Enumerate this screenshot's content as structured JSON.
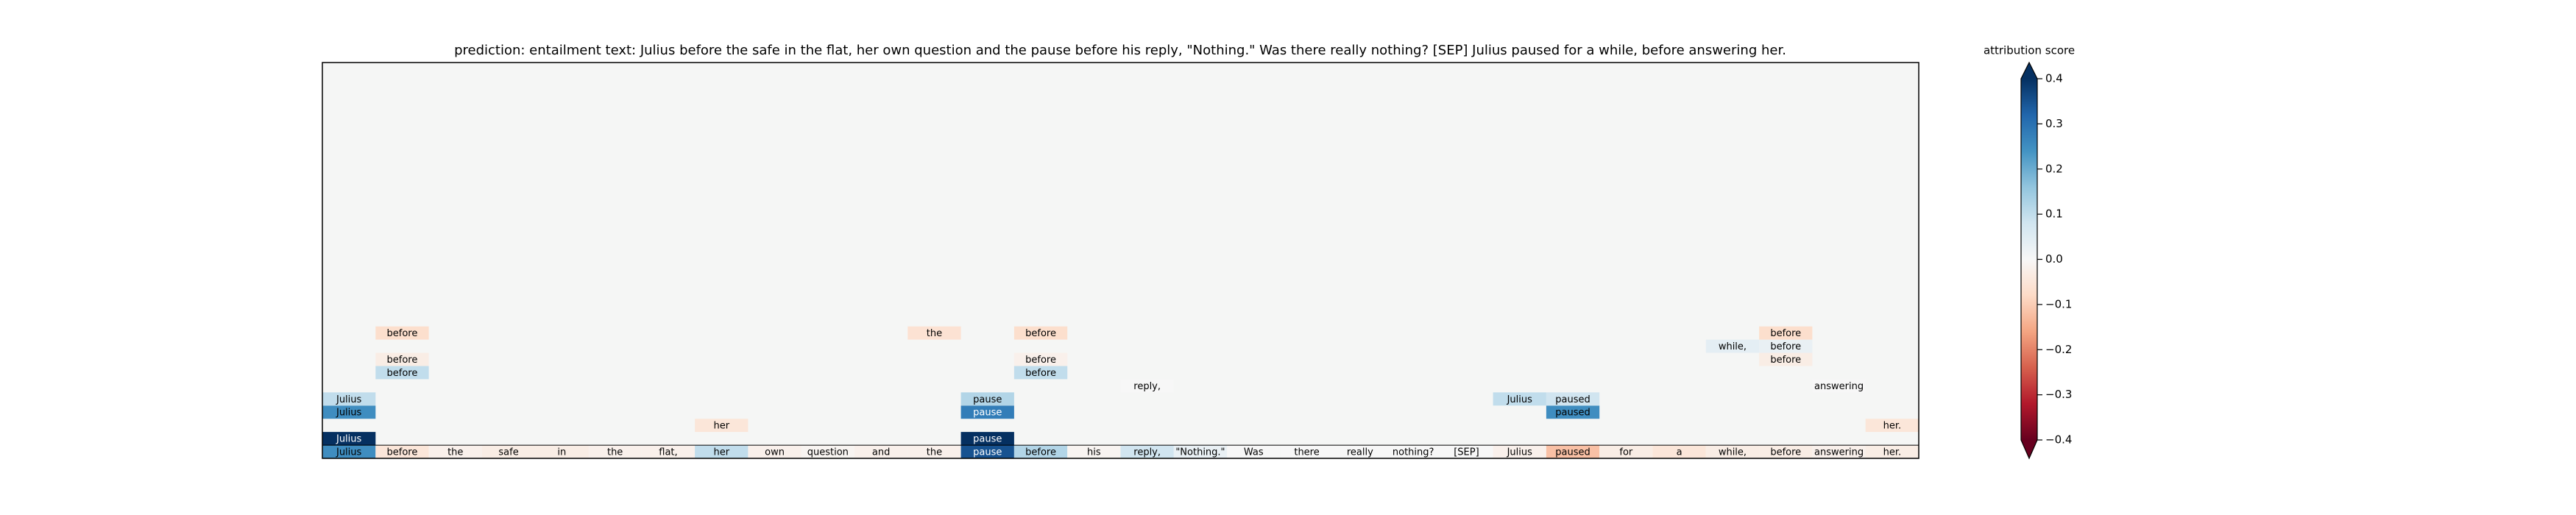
{
  "chart_data": {
    "type": "token-attribution",
    "title": "prediction:  entailment     text:  Julius before the safe in the flat, her own question and the pause before his reply, \"Nothing.\" Was there really nothing? [SEP] Julius paused for a while, before answering her.",
    "colorbar_label": "attribution score",
    "colormap": "RdBu",
    "clim": [
      -0.4,
      0.4
    ],
    "cticks": [
      {
        "value": -0.4,
        "label": "−0.4"
      },
      {
        "value": -0.3,
        "label": "−0.3"
      },
      {
        "value": -0.2,
        "label": "−0.2"
      },
      {
        "value": -0.1,
        "label": "−0.1"
      },
      {
        "value": 0,
        "label": "0.0"
      },
      0.1,
      0.2,
      0.3,
      0.4
    ],
    "tokens": [
      "Julius",
      "before",
      "the",
      "safe",
      "in",
      "the",
      "flat,",
      "her",
      "own",
      "question",
      "and",
      "the",
      "pause",
      "before",
      "his",
      "reply,",
      "\"Nothing.\"",
      "Was",
      "there",
      "really",
      "nothing?",
      "[SEP]",
      "Julius",
      "paused",
      "for",
      "a",
      "while,",
      "before",
      "answering",
      "her."
    ],
    "rows": [
      [
        0.25,
        -0.05,
        -0.02,
        -0.03,
        -0.03,
        -0.02,
        -0.02,
        0.1,
        -0.02,
        -0.01,
        -0.02,
        -0.02,
        0.35,
        0.12,
        -0.01,
        0.08,
        0.03,
        0,
        0,
        0,
        0,
        0,
        -0.02,
        -0.12,
        -0.03,
        -0.05,
        -0.03,
        -0.03,
        -0.02,
        -0.03
      ],
      [
        0.4,
        null,
        null,
        null,
        null,
        null,
        null,
        null,
        null,
        null,
        null,
        null,
        0.4,
        null,
        null,
        null,
        null,
        null,
        null,
        null,
        null,
        null,
        null,
        null,
        null,
        null,
        null,
        null,
        null,
        null
      ],
      [
        null,
        null,
        null,
        null,
        null,
        null,
        null,
        -0.05,
        null,
        null,
        null,
        null,
        null,
        null,
        null,
        null,
        null,
        null,
        null,
        null,
        null,
        null,
        null,
        null,
        null,
        null,
        null,
        null,
        null,
        -0.05
      ],
      [
        0.25,
        null,
        null,
        null,
        null,
        null,
        null,
        null,
        null,
        null,
        null,
        null,
        0.28,
        null,
        null,
        null,
        null,
        null,
        null,
        null,
        null,
        null,
        null,
        0.25,
        null,
        null,
        null,
        null,
        null,
        null
      ],
      [
        0.1,
        null,
        null,
        null,
        null,
        null,
        null,
        null,
        null,
        null,
        null,
        null,
        0.12,
        null,
        null,
        null,
        null,
        null,
        null,
        null,
        null,
        null,
        0.1,
        0.08,
        null,
        null,
        null,
        null,
        null,
        null
      ],
      [
        null,
        null,
        null,
        null,
        null,
        null,
        null,
        null,
        null,
        null,
        null,
        null,
        null,
        null,
        null,
        0,
        null,
        null,
        null,
        null,
        null,
        null,
        null,
        null,
        null,
        null,
        null,
        null,
        0,
        null
      ],
      [
        null,
        0.1,
        null,
        null,
        null,
        null,
        null,
        null,
        null,
        null,
        null,
        null,
        null,
        0.1,
        null,
        null,
        null,
        null,
        null,
        null,
        null,
        null,
        null,
        null,
        null,
        null,
        null,
        null,
        null,
        null
      ],
      [
        null,
        -0.03,
        null,
        null,
        null,
        null,
        null,
        null,
        null,
        null,
        null,
        null,
        null,
        -0.02,
        null,
        null,
        null,
        null,
        null,
        null,
        null,
        null,
        null,
        null,
        null,
        null,
        null,
        -0.03,
        null,
        null
      ],
      [
        null,
        null,
        null,
        null,
        null,
        null,
        null,
        null,
        null,
        null,
        null,
        null,
        null,
        null,
        null,
        null,
        null,
        null,
        null,
        null,
        null,
        null,
        null,
        null,
        null,
        null,
        0.04,
        0.03,
        null,
        null
      ],
      [
        null,
        -0.07,
        null,
        null,
        null,
        null,
        null,
        null,
        null,
        null,
        null,
        -0.06,
        null,
        -0.07,
        null,
        null,
        null,
        null,
        null,
        null,
        null,
        null,
        null,
        null,
        null,
        null,
        null,
        -0.07,
        null,
        null
      ]
    ]
  }
}
